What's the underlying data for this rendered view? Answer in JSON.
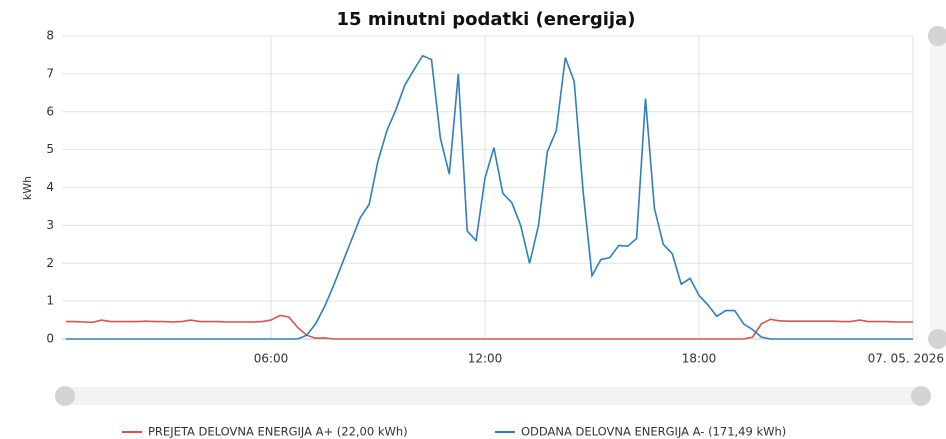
{
  "chart_data": {
    "type": "line",
    "title": "15 minutni podatki (energija)",
    "y_label": "kWh",
    "x": [
      0.25,
      0.5,
      0.75,
      1,
      1.25,
      1.5,
      1.75,
      2,
      2.25,
      2.5,
      2.75,
      3,
      3.25,
      3.5,
      3.75,
      4,
      4.25,
      4.5,
      4.75,
      5,
      5.25,
      5.5,
      5.75,
      6,
      6.25,
      6.5,
      6.75,
      7,
      7.25,
      7.5,
      7.75,
      8,
      8.25,
      8.5,
      8.75,
      9,
      9.25,
      9.5,
      9.75,
      10,
      10.25,
      10.5,
      10.75,
      11,
      11.25,
      11.5,
      11.75,
      12,
      12.25,
      12.5,
      12.75,
      13,
      13.25,
      13.5,
      13.75,
      14,
      14.25,
      14.5,
      14.75,
      15,
      15.25,
      15.5,
      15.75,
      16,
      16.25,
      16.5,
      16.75,
      17,
      17.25,
      17.5,
      17.75,
      18,
      18.25,
      18.5,
      18.75,
      19,
      19.25,
      19.5,
      19.75,
      20,
      20.25,
      20.5,
      20.75,
      21,
      21.25,
      21.5,
      21.75,
      22,
      22.25,
      22.5,
      22.75,
      23,
      23.25,
      23.5,
      23.75,
      24
    ],
    "series": [
      {
        "name": "PREJETA DELOVNA ENERGIJA A+ (22,00 kWh)",
        "color": "#d9534f",
        "values": [
          0.46,
          0.46,
          0.45,
          0.44,
          0.5,
          0.46,
          0.46,
          0.46,
          0.46,
          0.47,
          0.46,
          0.46,
          0.45,
          0.46,
          0.5,
          0.46,
          0.46,
          0.46,
          0.45,
          0.45,
          0.45,
          0.45,
          0.46,
          0.5,
          0.62,
          0.58,
          0.3,
          0.1,
          0.02,
          0.03,
          0,
          0,
          0,
          0,
          0,
          0,
          0,
          0,
          0,
          0,
          0,
          0,
          0,
          0,
          0,
          0,
          0,
          0,
          0,
          0,
          0,
          0,
          0,
          0,
          0,
          0,
          0,
          0,
          0,
          0,
          0,
          0,
          0,
          0,
          0,
          0,
          0,
          0,
          0,
          0,
          0,
          0,
          0,
          0,
          0,
          0,
          0,
          0.05,
          0.4,
          0.52,
          0.48,
          0.47,
          0.47,
          0.47,
          0.47,
          0.47,
          0.47,
          0.46,
          0.46,
          0.5,
          0.46,
          0.46,
          0.46,
          0.45,
          0.45,
          0.45
        ]
      },
      {
        "name": "ODDANA DELOVNA ENERGIJA A- (171,49 kWh)",
        "color": "#2e7fc1",
        "values": [
          0,
          0,
          0,
          0,
          0,
          0,
          0,
          0,
          0,
          0,
          0,
          0,
          0,
          0,
          0,
          0,
          0,
          0,
          0,
          0,
          0,
          0,
          0,
          0,
          0,
          0,
          0,
          0.1,
          0.4,
          0.85,
          1.4,
          2.0,
          2.6,
          3.2,
          3.55,
          4.7,
          5.5,
          6.05,
          6.7,
          7.1,
          7.48,
          7.38,
          5.3,
          4.35,
          7.0,
          2.85,
          2.6,
          4.25,
          5.05,
          3.85,
          3.6,
          3.0,
          2.0,
          3.0,
          4.95,
          5.5,
          7.43,
          6.8,
          3.9,
          1.67,
          2.1,
          2.15,
          2.47,
          2.45,
          2.65,
          6.35,
          3.45,
          2.5,
          2.25,
          1.45,
          1.6,
          1.15,
          0.9,
          0.6,
          0.75,
          0.75,
          0.4,
          0.25,
          0.05,
          0,
          0,
          0,
          0,
          0,
          0,
          0,
          0,
          0,
          0,
          0,
          0,
          0,
          0,
          0,
          0,
          0
        ]
      }
    ],
    "xlim": [
      0,
      24
    ],
    "xticks": [
      {
        "value": 6,
        "label": "06:00"
      },
      {
        "value": 12,
        "label": "12:00"
      },
      {
        "value": 18,
        "label": "18:00"
      },
      {
        "value": 24,
        "label": "07. 05. 2026"
      }
    ],
    "ylim": [
      0,
      8
    ],
    "yticks": [
      0,
      1,
      2,
      3,
      4,
      5,
      6,
      7,
      8
    ],
    "grid": true
  }
}
